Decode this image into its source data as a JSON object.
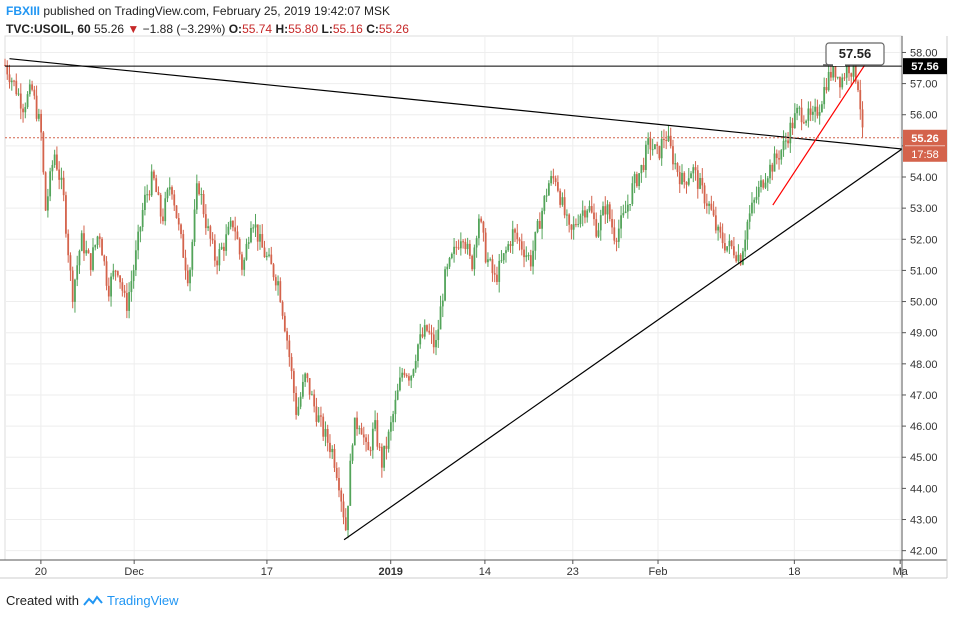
{
  "header": {
    "author": "FBXIII",
    "published_text": "published on TradingView.com, February 25, 2019 19:42:07 MSK",
    "symbol": "TVC:USOIL, 60",
    "last": "55.26",
    "change": "−1.88 (−3.29%)",
    "o_label": "O:",
    "o_value": "55.74",
    "h_label": "H:",
    "h_value": "55.80",
    "l_label": "L:",
    "l_value": "55.16",
    "c_label": "C:",
    "c_value": "55.26"
  },
  "footer": {
    "created_with": "Created with",
    "brand": "TradingView"
  },
  "colors": {
    "up": "#53a45a",
    "down": "#d4634c",
    "grid": "#eeeeee",
    "axis": "#555555",
    "price_line": "#d4634c",
    "trend_line": "#000000",
    "red_line": "#ff0000"
  },
  "chart_data": {
    "type": "candlestick",
    "symbol": "TVC:USOIL",
    "interval": "60",
    "y_ticks": [
      "42.00",
      "43.00",
      "44.00",
      "45.00",
      "46.00",
      "47.00",
      "48.00",
      "49.00",
      "50.00",
      "51.00",
      "52.00",
      "53.00",
      "54.00",
      "55.00",
      "56.00",
      "57.00",
      "58.00"
    ],
    "ylim": [
      41.7,
      58.4
    ],
    "x_ticks": [
      {
        "label": "20",
        "t": 0.04
      },
      {
        "label": "Dec",
        "t": 0.144
      },
      {
        "label": "17",
        "t": 0.292
      },
      {
        "label": "2019",
        "t": 0.43,
        "bold": true
      },
      {
        "label": "14",
        "t": 0.535
      },
      {
        "label": "23",
        "t": 0.633
      },
      {
        "label": "Feb",
        "t": 0.728
      },
      {
        "label": "18",
        "t": 0.88
      },
      {
        "label": "Ma",
        "t": 0.998
      }
    ],
    "price_path": [
      [
        0.0,
        57.6
      ],
      [
        0.01,
        57.0
      ],
      [
        0.02,
        56.3
      ],
      [
        0.03,
        56.8
      ],
      [
        0.04,
        55.5
      ],
      [
        0.045,
        52.9
      ],
      [
        0.055,
        54.8
      ],
      [
        0.065,
        53.4
      ],
      [
        0.075,
        50.2
      ],
      [
        0.085,
        52.0
      ],
      [
        0.095,
        51.2
      ],
      [
        0.105,
        52.3
      ],
      [
        0.115,
        50.4
      ],
      [
        0.125,
        51.2
      ],
      [
        0.135,
        49.8
      ],
      [
        0.145,
        51.3
      ],
      [
        0.155,
        53.2
      ],
      [
        0.165,
        54.0
      ],
      [
        0.175,
        52.6
      ],
      [
        0.185,
        53.9
      ],
      [
        0.195,
        52.1
      ],
      [
        0.205,
        50.7
      ],
      [
        0.215,
        53.9
      ],
      [
        0.225,
        52.4
      ],
      [
        0.235,
        51.3
      ],
      [
        0.245,
        51.9
      ],
      [
        0.255,
        52.6
      ],
      [
        0.265,
        51.0
      ],
      [
        0.275,
        52.8
      ],
      [
        0.285,
        51.8
      ],
      [
        0.295,
        51.2
      ],
      [
        0.305,
        50.6
      ],
      [
        0.315,
        48.7
      ],
      [
        0.325,
        46.4
      ],
      [
        0.335,
        47.6
      ],
      [
        0.345,
        46.6
      ],
      [
        0.355,
        45.8
      ],
      [
        0.365,
        45.2
      ],
      [
        0.372,
        44.3
      ],
      [
        0.38,
        42.7
      ],
      [
        0.388,
        45.9
      ],
      [
        0.396,
        46.2
      ],
      [
        0.404,
        45.0
      ],
      [
        0.412,
        46.0
      ],
      [
        0.42,
        44.8
      ],
      [
        0.428,
        45.7
      ],
      [
        0.436,
        46.8
      ],
      [
        0.444,
        47.9
      ],
      [
        0.452,
        47.6
      ],
      [
        0.46,
        48.6
      ],
      [
        0.47,
        49.1
      ],
      [
        0.48,
        48.5
      ],
      [
        0.49,
        50.7
      ],
      [
        0.5,
        51.5
      ],
      [
        0.51,
        52.3
      ],
      [
        0.52,
        51.1
      ],
      [
        0.528,
        52.8
      ],
      [
        0.536,
        51.5
      ],
      [
        0.546,
        50.7
      ],
      [
        0.556,
        51.4
      ],
      [
        0.566,
        52.2
      ],
      [
        0.576,
        51.8
      ],
      [
        0.586,
        51.3
      ],
      [
        0.596,
        52.6
      ],
      [
        0.606,
        53.8
      ],
      [
        0.614,
        54.0
      ],
      [
        0.622,
        53.0
      ],
      [
        0.63,
        52.1
      ],
      [
        0.64,
        52.8
      ],
      [
        0.65,
        53.1
      ],
      [
        0.66,
        52.3
      ],
      [
        0.67,
        53.1
      ],
      [
        0.68,
        52.1
      ],
      [
        0.69,
        52.7
      ],
      [
        0.7,
        53.7
      ],
      [
        0.71,
        54.3
      ],
      [
        0.718,
        55.1
      ],
      [
        0.728,
        54.7
      ],
      [
        0.736,
        55.4
      ],
      [
        0.746,
        54.5
      ],
      [
        0.756,
        53.8
      ],
      [
        0.766,
        54.3
      ],
      [
        0.776,
        53.6
      ],
      [
        0.786,
        53.0
      ],
      [
        0.794,
        52.2
      ],
      [
        0.804,
        51.8
      ],
      [
        0.812,
        51.7
      ],
      [
        0.82,
        51.4
      ],
      [
        0.828,
        52.6
      ],
      [
        0.838,
        53.4
      ],
      [
        0.848,
        54.1
      ],
      [
        0.858,
        54.5
      ],
      [
        0.868,
        55.0
      ],
      [
        0.876,
        55.6
      ],
      [
        0.884,
        56.1
      ],
      [
        0.892,
        56.0
      ],
      [
        0.9,
        55.8
      ],
      [
        0.908,
        56.3
      ],
      [
        0.916,
        57.1
      ],
      [
        0.924,
        57.5
      ],
      [
        0.932,
        57.1
      ],
      [
        0.94,
        57.6
      ],
      [
        0.948,
        57.3
      ],
      [
        0.952,
        56.9
      ],
      [
        0.956,
        55.3
      ]
    ],
    "trendlines": [
      {
        "from": [
          0.005,
          57.8
        ],
        "to": [
          1.0,
          54.9
        ],
        "color": "#000000"
      },
      {
        "from": [
          0.378,
          42.35
        ],
        "to": [
          1.0,
          54.9
        ],
        "color": "#000000"
      },
      {
        "from": [
          0.856,
          53.1
        ],
        "to": [
          0.97,
          58.1
        ],
        "color": "#ff0000"
      },
      {
        "from": [
          0.0,
          57.56
        ],
        "to": [
          1.0,
          57.56
        ],
        "color": "#000000",
        "horizontal": true
      }
    ],
    "last_price": 55.26,
    "last_price_label": "55.26",
    "countdown_label": "17:58",
    "level_label": "57.56",
    "callout_label": "57.56"
  }
}
